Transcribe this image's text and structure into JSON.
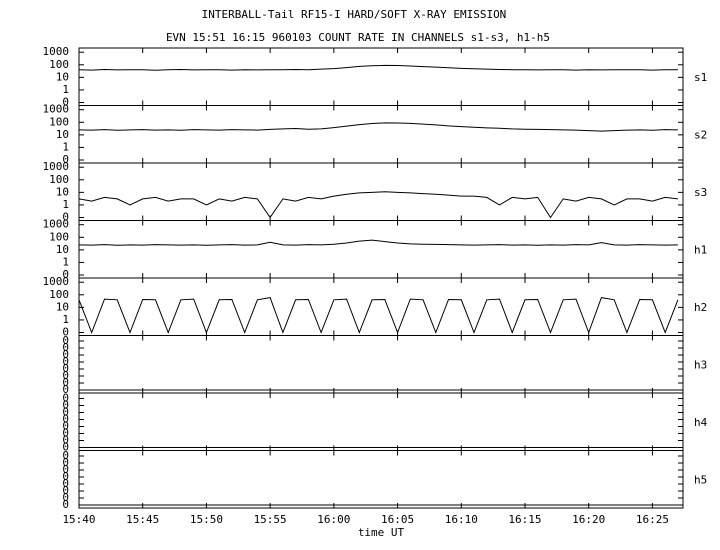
{
  "chart_data": {
    "type": "line",
    "title": "INTERBALL-Tail RF15-I HARD/SOFT X-RAY EMISSION",
    "subtitle": "EVN 15:51 16:15 960103  COUNT RATE IN CHANNELS s1-s3, h1-h5",
    "xlabel": "time UT",
    "xlim": [
      940,
      987.4
    ],
    "xticks": [
      {
        "value": 940,
        "label": "15:40"
      },
      {
        "value": 945,
        "label": "15:45"
      },
      {
        "value": 950,
        "label": "15:50"
      },
      {
        "value": 955,
        "label": "15:55"
      },
      {
        "value": 960,
        "label": "16:00"
      },
      {
        "value": 965,
        "label": "16:05"
      },
      {
        "value": 970,
        "label": "16:10"
      },
      {
        "value": 975,
        "label": "16:15"
      },
      {
        "value": 980,
        "label": "16:20"
      },
      {
        "value": 985,
        "label": "16:25"
      }
    ],
    "x": [
      940,
      941,
      942,
      943,
      944,
      945,
      946,
      947,
      948,
      949,
      950,
      951,
      952,
      953,
      954,
      955,
      956,
      957,
      958,
      959,
      960,
      961,
      962,
      963,
      964,
      965,
      966,
      967,
      968,
      969,
      970,
      971,
      972,
      973,
      974,
      975,
      976,
      977,
      978,
      979,
      980,
      981,
      982,
      983,
      984,
      985,
      986,
      987
    ],
    "panels": [
      {
        "name": "s1",
        "log": true,
        "color": "#000000",
        "ylim": [
          0.1,
          1500
        ],
        "yticks": [
          {
            "value": 0.1,
            "label": "0"
          },
          1,
          10,
          100,
          1000
        ],
        "values": [
          40,
          38,
          42,
          39,
          41,
          40,
          37,
          40,
          42,
          39,
          40,
          41,
          38,
          40,
          39,
          41,
          40,
          42,
          41,
          45,
          50,
          60,
          75,
          85,
          90,
          88,
          80,
          72,
          65,
          58,
          52,
          48,
          45,
          42,
          41,
          40,
          39,
          41,
          40,
          38,
          40,
          39,
          41,
          40,
          40,
          38,
          41,
          40
        ]
      },
      {
        "name": "s2",
        "log": true,
        "color": "#000000",
        "ylim": [
          0.1,
          1500
        ],
        "yticks": [
          {
            "value": 0.1,
            "label": "0"
          },
          1,
          10,
          100,
          1000
        ],
        "values": [
          25,
          24,
          26,
          23,
          25,
          26,
          24,
          25,
          23,
          26,
          25,
          24,
          26,
          25,
          24,
          27,
          30,
          32,
          28,
          30,
          38,
          50,
          65,
          80,
          90,
          88,
          82,
          72,
          62,
          52,
          45,
          40,
          36,
          33,
          30,
          28,
          27,
          26,
          25,
          24,
          22,
          20,
          22,
          24,
          25,
          23,
          26,
          25
        ]
      },
      {
        "name": "s3",
        "log": true,
        "color": "#000000",
        "ylim": [
          0.1,
          1500
        ],
        "yticks": [
          {
            "value": 0.1,
            "label": "0"
          },
          1,
          10,
          100,
          1000
        ],
        "values": [
          3,
          2,
          4,
          3,
          1,
          3,
          4,
          2,
          3,
          3,
          1,
          3,
          2,
          4,
          3,
          0.1,
          3,
          2,
          4,
          3,
          5,
          7,
          9,
          10,
          11,
          10,
          9,
          8,
          7,
          6,
          5,
          5,
          4,
          1,
          4,
          3,
          4,
          0.1,
          3,
          2,
          4,
          3,
          1,
          3,
          3,
          2,
          4,
          3
        ]
      },
      {
        "name": "h1",
        "log": true,
        "color": "#000000",
        "ylim": [
          0.1,
          1500
        ],
        "yticks": [
          {
            "value": 0.1,
            "label": "0"
          },
          1,
          10,
          100,
          1000
        ],
        "values": [
          25,
          24,
          26,
          23,
          25,
          24,
          26,
          25,
          24,
          25,
          23,
          25,
          26,
          24,
          25,
          40,
          25,
          24,
          26,
          25,
          28,
          35,
          50,
          60,
          45,
          35,
          30,
          28,
          27,
          26,
          25,
          24,
          25,
          26,
          24,
          25,
          23,
          25,
          24,
          26,
          25,
          38,
          25,
          24,
          26,
          25,
          24,
          25
        ]
      },
      {
        "name": "h2",
        "log": true,
        "color": "#000000",
        "ylim": [
          0.1,
          1500
        ],
        "yticks": [
          {
            "value": 0.1,
            "label": "0"
          },
          1,
          10,
          100,
          1000
        ],
        "values": [
          40,
          0.1,
          45,
          40,
          0.1,
          42,
          40,
          0.1,
          40,
          45,
          0.1,
          40,
          42,
          0.1,
          40,
          60,
          0.1,
          40,
          42,
          0.1,
          40,
          45,
          0.1,
          40,
          42,
          0.1,
          45,
          40,
          0.1,
          42,
          40,
          0.1,
          40,
          45,
          0.1,
          40,
          42,
          0.1,
          40,
          45,
          0.1,
          60,
          40,
          0.1,
          42,
          40,
          0.1,
          40
        ]
      },
      {
        "name": "h3",
        "log": false,
        "color": "#000000",
        "ylim": [
          0,
          0.75
        ],
        "yticks": [
          {
            "value": 0,
            "label": "0"
          },
          {
            "value": 0.1,
            "label": "0"
          },
          {
            "value": 0.2,
            "label": "0"
          },
          {
            "value": 0.3,
            "label": "0"
          },
          {
            "value": 0.4,
            "label": "0"
          },
          {
            "value": 0.5,
            "label": "0"
          },
          {
            "value": 0.6,
            "label": "0"
          },
          {
            "value": 0.7,
            "label": "0"
          }
        ],
        "values": [
          0,
          0,
          0,
          0,
          0,
          0,
          0,
          0,
          0,
          0,
          0,
          0,
          0,
          0,
          0,
          0,
          0,
          0,
          0,
          0,
          0,
          0,
          0,
          0,
          0,
          0,
          0,
          0,
          0,
          0,
          0,
          0,
          0,
          0,
          0,
          0,
          0,
          0,
          0,
          0,
          0,
          0,
          0,
          0,
          0,
          0,
          0,
          0
        ]
      },
      {
        "name": "h4",
        "log": false,
        "color": "#000000",
        "ylim": [
          0,
          0.75
        ],
        "yticks": [
          {
            "value": 0,
            "label": "0"
          },
          {
            "value": 0.1,
            "label": "0"
          },
          {
            "value": 0.2,
            "label": "0"
          },
          {
            "value": 0.3,
            "label": "0"
          },
          {
            "value": 0.4,
            "label": "0"
          },
          {
            "value": 0.5,
            "label": "0"
          },
          {
            "value": 0.6,
            "label": "0"
          },
          {
            "value": 0.7,
            "label": "0"
          }
        ],
        "values": [
          0,
          0,
          0,
          0,
          0,
          0,
          0,
          0,
          0,
          0,
          0,
          0,
          0,
          0,
          0,
          0,
          0,
          0,
          0,
          0,
          0,
          0,
          0,
          0,
          0,
          0,
          0,
          0,
          0,
          0,
          0,
          0,
          0,
          0,
          0,
          0,
          0,
          0,
          0,
          0,
          0,
          0,
          0,
          0,
          0,
          0,
          0,
          0
        ]
      },
      {
        "name": "h5",
        "log": false,
        "color": "#000000",
        "ylim": [
          0,
          0.75
        ],
        "yticks": [
          {
            "value": 0,
            "label": "0"
          },
          {
            "value": 0.1,
            "label": "0"
          },
          {
            "value": 0.2,
            "label": "0"
          },
          {
            "value": 0.3,
            "label": "0"
          },
          {
            "value": 0.4,
            "label": "0"
          },
          {
            "value": 0.5,
            "label": "0"
          },
          {
            "value": 0.6,
            "label": "0"
          },
          {
            "value": 0.7,
            "label": "0"
          }
        ],
        "values": [
          0,
          0,
          0,
          0,
          0,
          0,
          0,
          0,
          0,
          0,
          0,
          0,
          0,
          0,
          0,
          0,
          0,
          0,
          0,
          0,
          0,
          0,
          0,
          0,
          0,
          0,
          0,
          0,
          0,
          0,
          0,
          0,
          0,
          0,
          0,
          0,
          0,
          0,
          0,
          0,
          0,
          0,
          0,
          0,
          0,
          0,
          0,
          0
        ]
      }
    ]
  }
}
